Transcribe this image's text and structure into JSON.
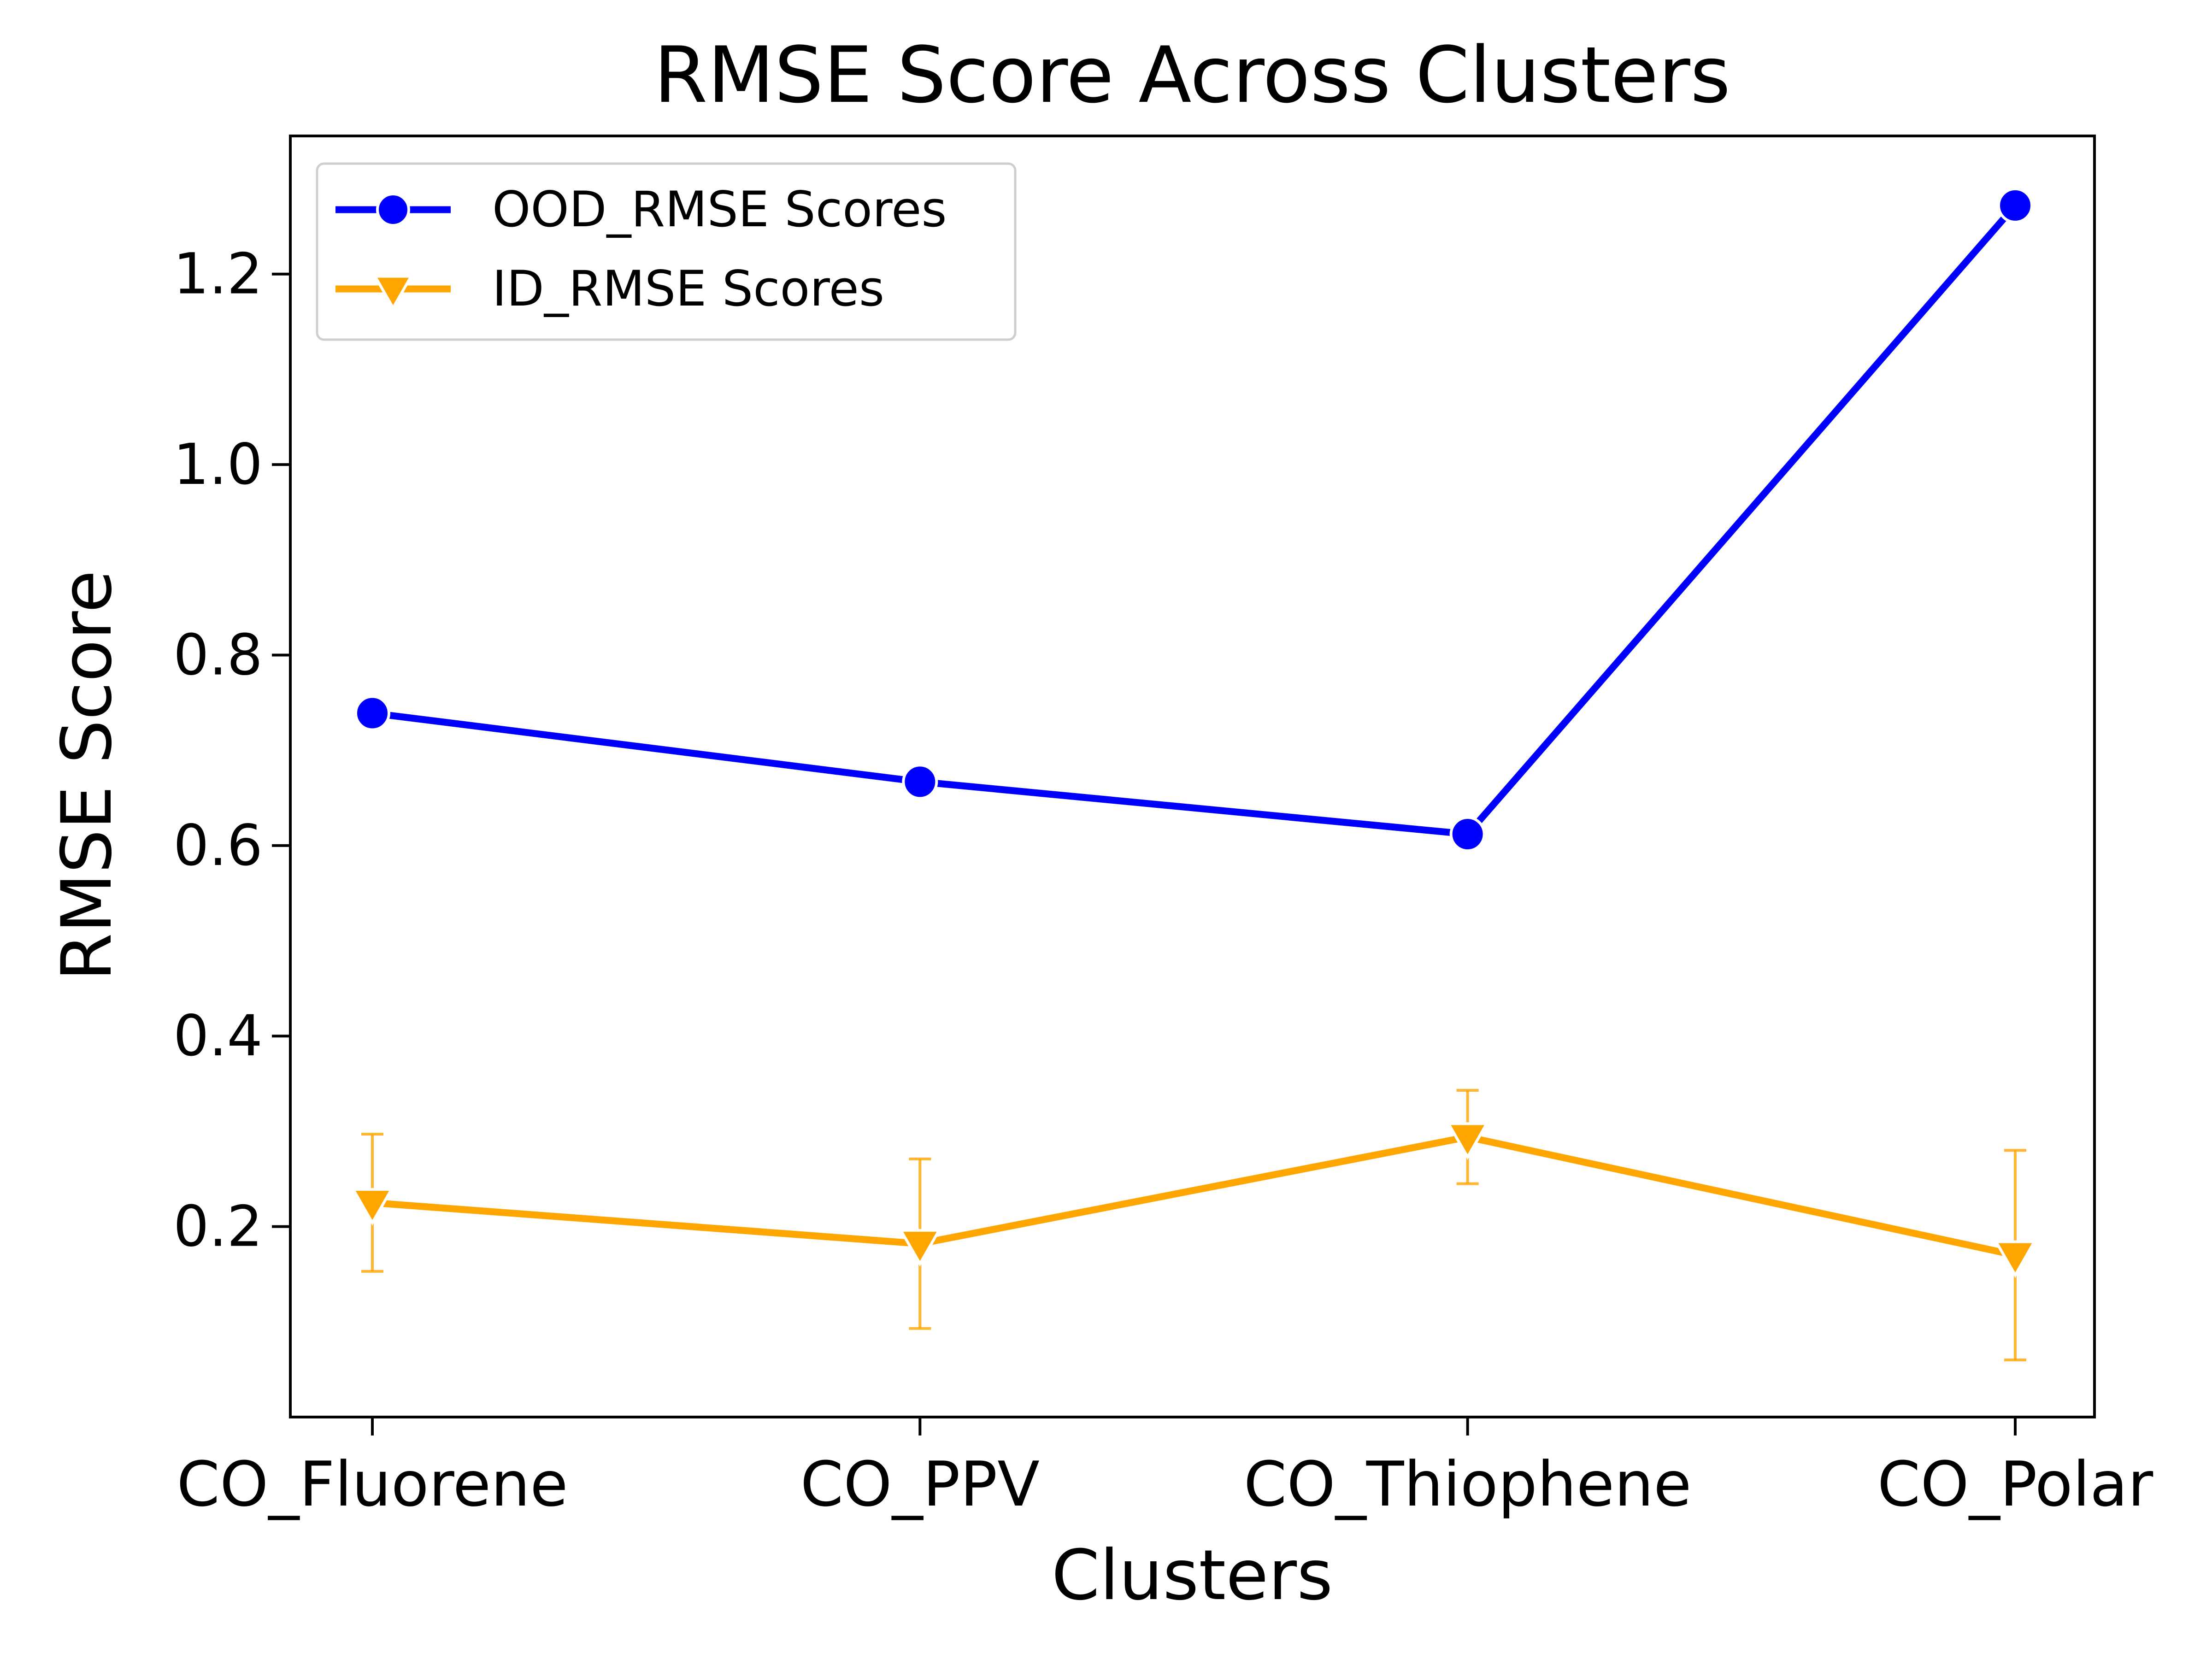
{
  "chart_data": {
    "type": "line",
    "title": "RMSE Score Across Clusters",
    "xlabel": "Clusters",
    "ylabel": "RMSE Score",
    "categories": [
      "CO_Fluorene",
      "CO_PPV",
      "CO_Thiophene",
      "CO_Polar"
    ],
    "ylim": [
      0.0,
      1.345
    ],
    "yticks": [
      0.2,
      0.4,
      0.6,
      0.8,
      1.0,
      1.2
    ],
    "ytick_labels": [
      "0.2",
      "0.4",
      "0.6",
      "0.8",
      "1.0",
      "1.2"
    ],
    "grid": false,
    "legend_position": "upper left",
    "series": [
      {
        "name": "OOD_RMSE Scores",
        "values": [
          0.739,
          0.667,
          0.612,
          1.272
        ],
        "color": "#0000ff",
        "marker": "circle"
      },
      {
        "name": "ID_RMSE Scores",
        "values": [
          0.225,
          0.182,
          0.294,
          0.17
        ],
        "error_low": [
          0.153,
          0.093,
          0.245,
          0.06
        ],
        "error_high": [
          0.297,
          0.271,
          0.343,
          0.28
        ],
        "color": "#ffa500",
        "marker": "triangle-down"
      }
    ]
  }
}
